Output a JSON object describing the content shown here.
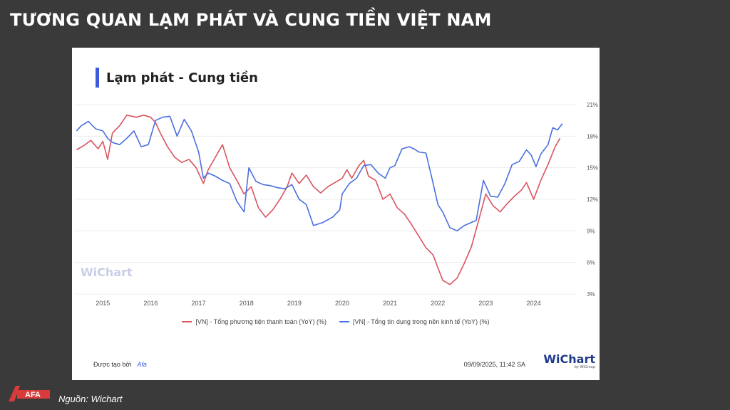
{
  "slide_title": "TƯƠNG QUAN LẠM PHÁT VÀ CUNG TIỀN VIỆT NAM",
  "card_title": "Lạm phát - Cung tiền",
  "watermark": "WiChart",
  "footer": {
    "created_by": "Được tạo bởi",
    "brand": "Afa",
    "timestamp": "09/09/2025, 11:42 SA",
    "logo_text": "WiChart",
    "logo_sub": "by WiGroup"
  },
  "source": {
    "logo_text": "AFA",
    "text": "Nguồn: Wichart"
  },
  "colors": {
    "red": "#d9535f",
    "blue": "#4a6fe0",
    "accent": "#3b5bdb"
  },
  "chart_data": {
    "type": "line",
    "x_ticks": [
      "2015",
      "2016",
      "2017",
      "2018",
      "2019",
      "2020",
      "2021",
      "2022",
      "2023",
      "2024"
    ],
    "y_ticks": [
      "3%",
      "6%",
      "9%",
      "12%",
      "15%",
      "18%",
      "21%"
    ],
    "ylim": [
      3,
      21
    ],
    "xlim": [
      2014.4,
      2024.9
    ],
    "grid": true,
    "legend_position": "bottom",
    "series": [
      {
        "name": "[VN] - Tổng phương tiện thanh toán (YoY) (%)",
        "color": "#d9535f",
        "points": [
          [
            2014.45,
            16.7
          ],
          [
            2014.6,
            17.1
          ],
          [
            2014.75,
            17.6
          ],
          [
            2014.9,
            16.8
          ],
          [
            2015.0,
            17.5
          ],
          [
            2015.1,
            15.8
          ],
          [
            2015.2,
            18.3
          ],
          [
            2015.35,
            19.0
          ],
          [
            2015.5,
            20.0
          ],
          [
            2015.7,
            19.8
          ],
          [
            2015.85,
            20.0
          ],
          [
            2016.0,
            19.8
          ],
          [
            2016.1,
            19.3
          ],
          [
            2016.2,
            18.3
          ],
          [
            2016.35,
            17.0
          ],
          [
            2016.5,
            16.0
          ],
          [
            2016.65,
            15.5
          ],
          [
            2016.8,
            15.8
          ],
          [
            2016.95,
            15.0
          ],
          [
            2017.1,
            13.5
          ],
          [
            2017.2,
            14.8
          ],
          [
            2017.35,
            16.0
          ],
          [
            2017.5,
            17.2
          ],
          [
            2017.65,
            15.0
          ],
          [
            2017.8,
            13.8
          ],
          [
            2017.95,
            12.5
          ],
          [
            2018.1,
            13.2
          ],
          [
            2018.25,
            11.2
          ],
          [
            2018.4,
            10.3
          ],
          [
            2018.55,
            11.0
          ],
          [
            2018.7,
            12.0
          ],
          [
            2018.85,
            13.2
          ],
          [
            2018.95,
            14.5
          ],
          [
            2019.1,
            13.5
          ],
          [
            2019.25,
            14.3
          ],
          [
            2019.4,
            13.2
          ],
          [
            2019.55,
            12.6
          ],
          [
            2019.7,
            13.2
          ],
          [
            2019.85,
            13.6
          ],
          [
            2020.0,
            14.0
          ],
          [
            2020.1,
            14.8
          ],
          [
            2020.2,
            14.0
          ],
          [
            2020.35,
            15.2
          ],
          [
            2020.45,
            15.7
          ],
          [
            2020.55,
            14.2
          ],
          [
            2020.7,
            13.8
          ],
          [
            2020.85,
            12.0
          ],
          [
            2021.0,
            12.5
          ],
          [
            2021.15,
            11.2
          ],
          [
            2021.3,
            10.6
          ],
          [
            2021.45,
            9.6
          ],
          [
            2021.6,
            8.5
          ],
          [
            2021.75,
            7.4
          ],
          [
            2021.9,
            6.7
          ],
          [
            2022.0,
            5.5
          ],
          [
            2022.1,
            4.3
          ],
          [
            2022.25,
            3.9
          ],
          [
            2022.4,
            4.5
          ],
          [
            2022.55,
            5.9
          ],
          [
            2022.7,
            7.5
          ],
          [
            2022.85,
            10.0
          ],
          [
            2023.0,
            12.5
          ],
          [
            2023.15,
            11.4
          ],
          [
            2023.3,
            10.8
          ],
          [
            2023.45,
            11.6
          ],
          [
            2023.6,
            12.3
          ],
          [
            2023.75,
            12.9
          ],
          [
            2023.85,
            13.6
          ],
          [
            2024.0,
            12.0
          ],
          [
            2024.15,
            13.8
          ],
          [
            2024.3,
            15.3
          ],
          [
            2024.45,
            17.0
          ],
          [
            2024.55,
            17.8
          ]
        ]
      },
      {
        "name": "[VN] - Tổng tín dụng trong nền kinh tế (YoY) (%)",
        "color": "#4a6fe0",
        "points": [
          [
            2014.45,
            18.5
          ],
          [
            2014.55,
            19.0
          ],
          [
            2014.7,
            19.4
          ],
          [
            2014.85,
            18.7
          ],
          [
            2015.0,
            18.5
          ],
          [
            2015.1,
            17.8
          ],
          [
            2015.2,
            17.4
          ],
          [
            2015.35,
            17.2
          ],
          [
            2015.5,
            17.8
          ],
          [
            2015.65,
            18.5
          ],
          [
            2015.8,
            17.0
          ],
          [
            2015.95,
            17.2
          ],
          [
            2016.1,
            19.5
          ],
          [
            2016.25,
            19.8
          ],
          [
            2016.4,
            19.9
          ],
          [
            2016.55,
            18.0
          ],
          [
            2016.7,
            19.6
          ],
          [
            2016.85,
            18.5
          ],
          [
            2017.0,
            16.5
          ],
          [
            2017.1,
            14.0
          ],
          [
            2017.2,
            14.5
          ],
          [
            2017.35,
            14.2
          ],
          [
            2017.5,
            13.8
          ],
          [
            2017.65,
            13.5
          ],
          [
            2017.8,
            11.8
          ],
          [
            2017.95,
            10.8
          ],
          [
            2018.05,
            15.0
          ],
          [
            2018.2,
            13.7
          ],
          [
            2018.35,
            13.4
          ],
          [
            2018.5,
            13.3
          ],
          [
            2018.65,
            13.1
          ],
          [
            2018.8,
            13.0
          ],
          [
            2018.95,
            13.4
          ],
          [
            2019.1,
            12.0
          ],
          [
            2019.25,
            11.5
          ],
          [
            2019.4,
            9.5
          ],
          [
            2019.6,
            9.8
          ],
          [
            2019.8,
            10.3
          ],
          [
            2019.95,
            11.0
          ],
          [
            2020.0,
            12.5
          ],
          [
            2020.15,
            13.5
          ],
          [
            2020.3,
            14.0
          ],
          [
            2020.45,
            15.2
          ],
          [
            2020.6,
            15.3
          ],
          [
            2020.75,
            14.5
          ],
          [
            2020.9,
            14.0
          ],
          [
            2021.0,
            15.0
          ],
          [
            2021.1,
            15.2
          ],
          [
            2021.25,
            16.8
          ],
          [
            2021.4,
            17.0
          ],
          [
            2021.5,
            16.8
          ],
          [
            2021.6,
            16.5
          ],
          [
            2021.75,
            16.4
          ],
          [
            2021.9,
            13.5
          ],
          [
            2022.0,
            11.5
          ],
          [
            2022.1,
            10.8
          ],
          [
            2022.25,
            9.3
          ],
          [
            2022.4,
            9.0
          ],
          [
            2022.55,
            9.5
          ],
          [
            2022.7,
            9.8
          ],
          [
            2022.8,
            10.0
          ],
          [
            2022.95,
            13.8
          ],
          [
            2023.1,
            12.3
          ],
          [
            2023.25,
            12.2
          ],
          [
            2023.4,
            13.5
          ],
          [
            2023.55,
            15.3
          ],
          [
            2023.7,
            15.6
          ],
          [
            2023.85,
            16.7
          ],
          [
            2023.95,
            16.2
          ],
          [
            2024.05,
            15.1
          ],
          [
            2024.15,
            16.3
          ],
          [
            2024.3,
            17.2
          ],
          [
            2024.4,
            18.8
          ],
          [
            2024.5,
            18.6
          ],
          [
            2024.6,
            19.2
          ]
        ]
      }
    ]
  }
}
